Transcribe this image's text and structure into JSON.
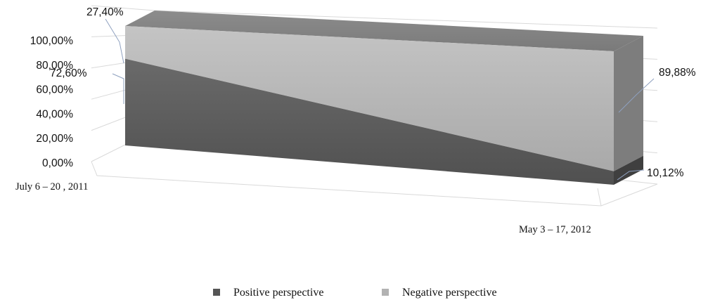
{
  "chart_data": {
    "type": "area",
    "categories": [
      "July 6 – 20 , 2011",
      "May 3 – 17, 2012"
    ],
    "series": [
      {
        "name": "Positive perspective",
        "values": [
          72.6,
          10.12
        ],
        "labels": [
          "72,60%",
          "10,12%"
        ],
        "color": "#555555"
      },
      {
        "name": "Negative perspective",
        "values": [
          27.4,
          89.88
        ],
        "labels": [
          "27,40%",
          "89,88%"
        ],
        "color": "#b2b2b2"
      }
    ],
    "stacked": "percent",
    "ylim": [
      0,
      100
    ],
    "yticks": [
      "0,00%",
      "20,00%",
      "40,00%",
      "60,00%",
      "80,00%",
      "100,00%"
    ],
    "title": "",
    "xlabel": "",
    "ylabel": "",
    "legend_position": "bottom",
    "grid": true
  }
}
